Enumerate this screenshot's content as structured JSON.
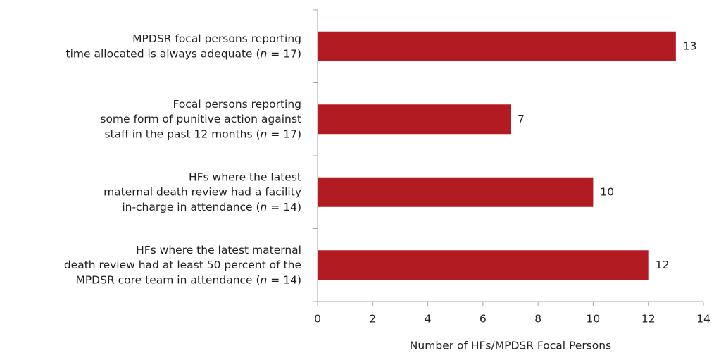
{
  "chart_data": {
    "type": "barh",
    "x_label": "Number of HFs/MPDSR Focal Persons",
    "categories": [
      [
        "MPDSR focal persons reporting",
        "time allocated is always adequate (n = 17)"
      ],
      [
        "Focal persons reporting",
        "some form of punitive action against",
        "staff in the past 12 months (n = 17)"
      ],
      [
        "HFs where the latest",
        "maternal death review had a facility",
        "in-charge in attendance (n = 14)"
      ],
      [
        "HFs where the latest maternal",
        "death review had at least 50 percent of the",
        "MPDSR core team in attendance (n = 14)"
      ]
    ],
    "values": [
      13,
      7,
      10,
      12
    ],
    "color": "#b31b23",
    "xlim": [
      0,
      14
    ],
    "xticks": [
      0,
      2,
      4,
      6,
      8,
      10,
      12,
      14
    ]
  }
}
